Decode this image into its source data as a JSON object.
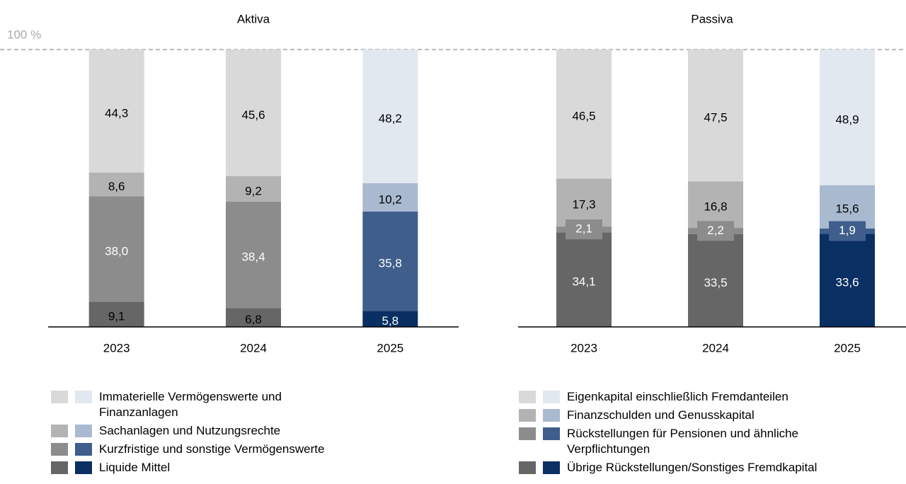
{
  "chart_data": [
    {
      "type": "stacked-bar",
      "title": "Aktiva",
      "categories": [
        "2023",
        "2024",
        "2025"
      ],
      "ylim": [
        0,
        100
      ],
      "yticks": [
        {
          "value": 100,
          "label": "100 %"
        }
      ],
      "grid": true,
      "series": [
        {
          "name": "Immaterielle Vermögenswerte und\nFinanzanlagen",
          "colors": [
            "#d9d9d9",
            "#d9d9d9",
            "#e2e8f0"
          ],
          "label_colors": [
            "#000000",
            "#000000",
            "#000000"
          ],
          "values": [
            44.3,
            45.6,
            48.2
          ],
          "value_labels": [
            "44,3",
            "45,6",
            "48,2"
          ]
        },
        {
          "name": "Sachanlagen und Nutzungsrechte",
          "colors": [
            "#b3b3b3",
            "#b3b3b3",
            "#a9b9d0"
          ],
          "label_colors": [
            "#000000",
            "#000000",
            "#000000"
          ],
          "values": [
            8.6,
            9.2,
            10.2
          ],
          "value_labels": [
            "8,6",
            "9,2",
            "10,2"
          ]
        },
        {
          "name": "Kurzfristige und sonstige Vermögenswerte",
          "colors": [
            "#8c8c8c",
            "#8c8c8c",
            "#3f5e8c"
          ],
          "label_colors": [
            "#ffffff",
            "#ffffff",
            "#ffffff"
          ],
          "values": [
            38.0,
            38.4,
            35.8
          ],
          "value_labels": [
            "38,0",
            "38,4",
            "35,8"
          ]
        },
        {
          "name": "Liquide Mittel",
          "colors": [
            "#666666",
            "#666666",
            "#0a2f63"
          ],
          "label_colors": [
            "#000000",
            "#000000",
            "#ffffff"
          ],
          "values": [
            9.1,
            6.8,
            5.8
          ],
          "value_labels": [
            "9,1",
            "6,8",
            "5,8"
          ]
        }
      ]
    },
    {
      "type": "stacked-bar",
      "title": "Passiva",
      "categories": [
        "2023",
        "2024",
        "2025"
      ],
      "ylim": [
        0,
        100
      ],
      "series": [
        {
          "name": "Eigenkapital einschließlich Fremdanteilen",
          "colors": [
            "#d9d9d9",
            "#d9d9d9",
            "#e2e8f0"
          ],
          "label_colors": [
            "#000000",
            "#000000",
            "#000000"
          ],
          "values": [
            46.5,
            47.5,
            48.9
          ],
          "value_labels": [
            "46,5",
            "47,5",
            "48,9"
          ]
        },
        {
          "name": "Finanzschulden und Genusskapital",
          "colors": [
            "#b3b3b3",
            "#b3b3b3",
            "#a9b9d0"
          ],
          "label_colors": [
            "#000000",
            "#000000",
            "#000000"
          ],
          "values": [
            17.3,
            16.8,
            15.6
          ],
          "value_labels": [
            "17,3",
            "16,8",
            "15,6"
          ]
        },
        {
          "name": "Rückstellungen für Pensionen und ähnliche\nVerpflichtungen",
          "colors": [
            "#8c8c8c",
            "#8c8c8c",
            "#3f5e8c"
          ],
          "label_colors": [
            "#ffffff",
            "#ffffff",
            "#ffffff"
          ],
          "values": [
            2.1,
            2.2,
            1.9
          ],
          "value_labels": [
            "2,1",
            "2,2",
            "1,9"
          ]
        },
        {
          "name": "Übrige Rückstellungen/Sonstiges Fremdkapital",
          "colors": [
            "#666666",
            "#666666",
            "#0a2f63"
          ],
          "label_colors": [
            "#ffffff",
            "#ffffff",
            "#ffffff"
          ],
          "values": [
            34.1,
            33.5,
            33.6
          ],
          "value_labels": [
            "34,1",
            "33,5",
            "33,6"
          ]
        }
      ]
    }
  ]
}
